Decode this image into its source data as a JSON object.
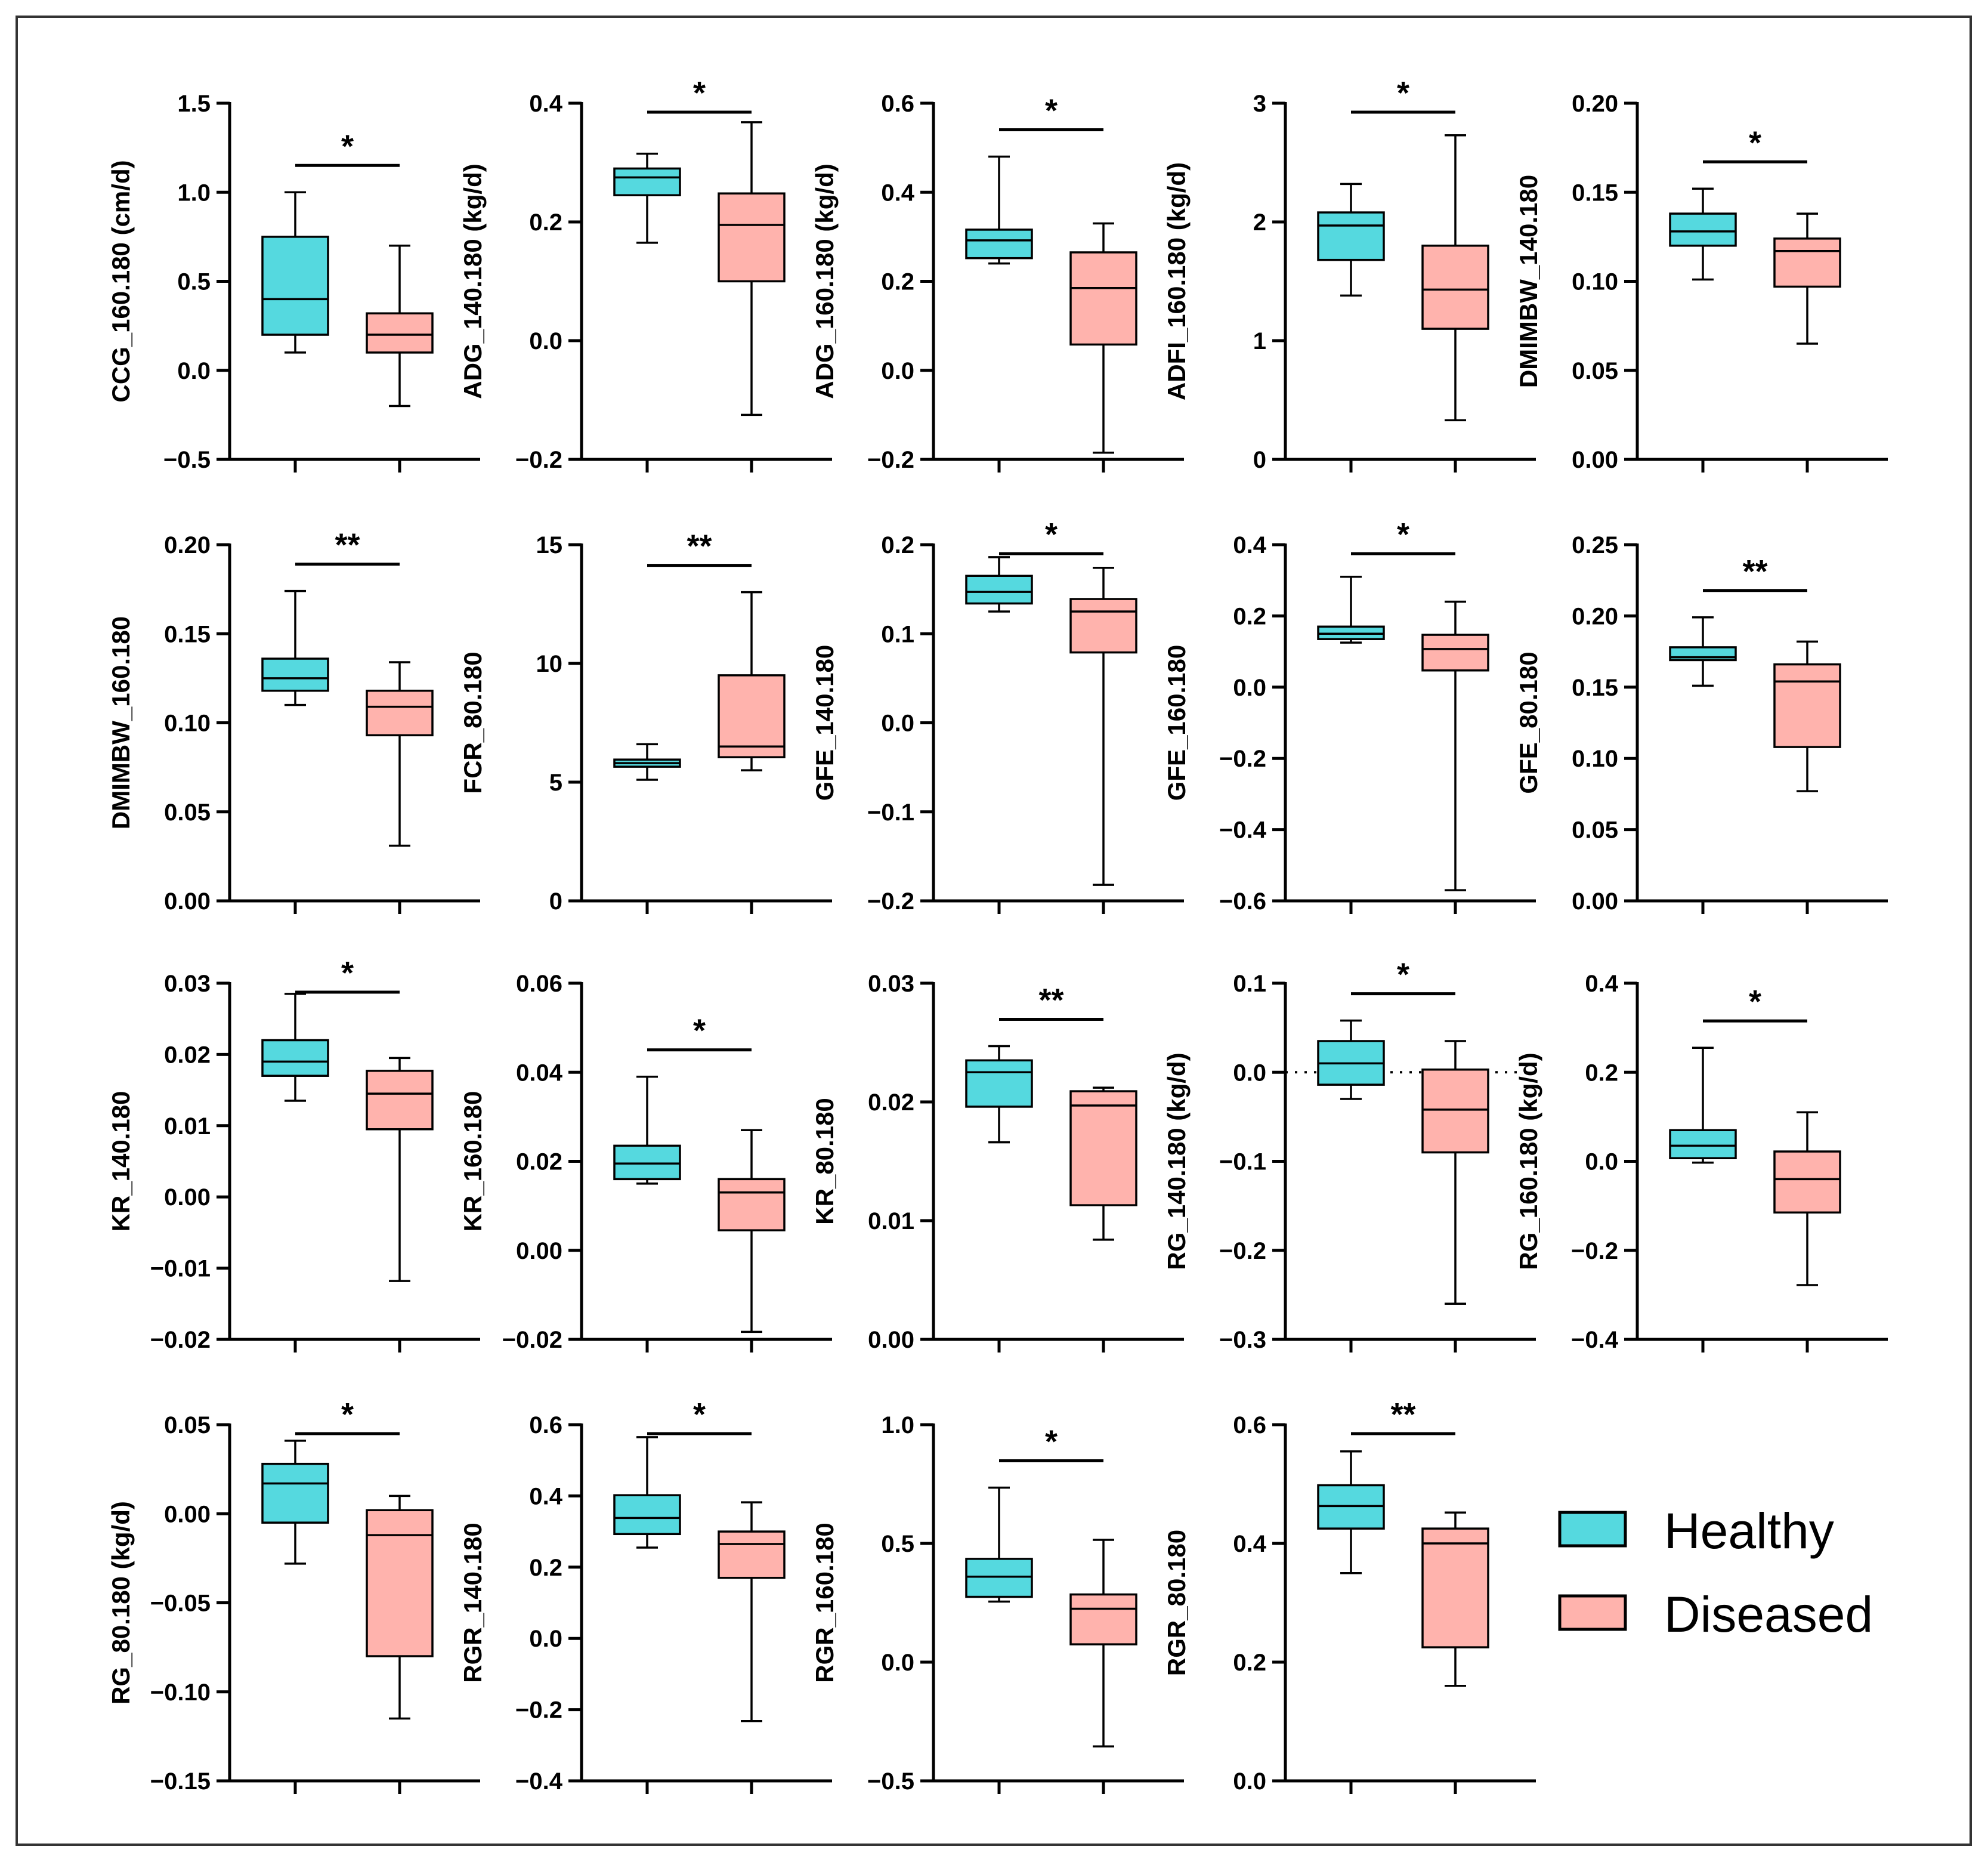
{
  "colors": {
    "healthy": "#55d9df",
    "diseased": "#ffb3ad",
    "stroke": "#000000"
  },
  "legend": {
    "position": "bottom-right",
    "items": [
      {
        "group": "healthy",
        "label": "Healthy"
      },
      {
        "group": "diseased",
        "label": "Diseased"
      }
    ]
  },
  "chart_data": [
    {
      "type": "boxplot",
      "ylabel": "CCG_160.180 (cm/d)",
      "ylim": [
        -0.5,
        1.5
      ],
      "ticks": [
        "1.5",
        "1.0",
        "0.5",
        "0.0",
        "−0.5"
      ],
      "sig": "*",
      "healthy": {
        "min": 0.1,
        "q1": 0.2,
        "median": 0.4,
        "q3": 0.75,
        "max": 1.0
      },
      "diseased": {
        "min": -0.2,
        "q1": 0.1,
        "median": 0.2,
        "q3": 0.32,
        "max": 0.7
      }
    },
    {
      "type": "boxplot",
      "ylabel": "ADG_140.180 (kg/d)",
      "ylim": [
        -0.2,
        0.4
      ],
      "ticks": [
        "0.4",
        "0.2",
        "0.0",
        "−0.2"
      ],
      "sig": "*",
      "healthy": {
        "min": 0.165,
        "q1": 0.245,
        "median": 0.275,
        "q3": 0.29,
        "max": 0.315
      },
      "diseased": {
        "min": -0.125,
        "q1": 0.1,
        "median": 0.195,
        "q3": 0.248,
        "max": 0.368
      }
    },
    {
      "type": "boxplot",
      "ylabel": "ADG_160.180 (kg/d)",
      "ylim": [
        -0.2,
        0.6
      ],
      "ticks": [
        "0.6",
        "0.4",
        "0.2",
        "0.0",
        "−0.2"
      ],
      "sig": "*",
      "healthy": {
        "min": 0.24,
        "q1": 0.252,
        "median": 0.292,
        "q3": 0.316,
        "max": 0.48
      },
      "diseased": {
        "min": -0.185,
        "q1": 0.058,
        "median": 0.185,
        "q3": 0.265,
        "max": 0.33
      }
    },
    {
      "type": "boxplot",
      "ylabel": "ADFI_160.180 (kg/d)",
      "ylim": [
        0,
        3
      ],
      "ticks": [
        "3",
        "2",
        "1",
        "0"
      ],
      "sig": "*",
      "healthy": {
        "min": 1.38,
        "q1": 1.68,
        "median": 1.97,
        "q3": 2.08,
        "max": 2.32
      },
      "diseased": {
        "min": 0.33,
        "q1": 1.1,
        "median": 1.43,
        "q3": 1.8,
        "max": 2.73
      }
    },
    {
      "type": "boxplot",
      "ylabel": "DMIMBW_140.180",
      "ylim": [
        0,
        0.2
      ],
      "ticks": [
        "0.20",
        "0.15",
        "0.10",
        "0.05",
        "0.00"
      ],
      "sig": "*",
      "healthy": {
        "min": 0.101,
        "q1": 0.12,
        "median": 0.128,
        "q3": 0.138,
        "max": 0.152
      },
      "diseased": {
        "min": 0.065,
        "q1": 0.097,
        "median": 0.117,
        "q3": 0.124,
        "max": 0.138
      }
    },
    {
      "type": "boxplot",
      "ylabel": "DMIMBW_160.180",
      "ylim": [
        0,
        0.2
      ],
      "ticks": [
        "0.20",
        "0.15",
        "0.10",
        "0.05",
        "0.00"
      ],
      "sig": "**",
      "healthy": {
        "min": 0.11,
        "q1": 0.118,
        "median": 0.125,
        "q3": 0.136,
        "max": 0.174
      },
      "diseased": {
        "min": 0.031,
        "q1": 0.093,
        "median": 0.109,
        "q3": 0.118,
        "max": 0.134
      }
    },
    {
      "type": "boxplot",
      "ylabel": "FCR_80.180",
      "ylim": [
        0,
        15
      ],
      "ticks": [
        "15",
        "10",
        "5",
        "0"
      ],
      "sig": "**",
      "healthy": {
        "min": 5.1,
        "q1": 5.65,
        "median": 5.8,
        "q3": 5.95,
        "max": 6.6
      },
      "diseased": {
        "min": 5.5,
        "q1": 6.05,
        "median": 6.5,
        "q3": 9.5,
        "max": 13.0
      }
    },
    {
      "type": "boxplot",
      "ylabel": "GFE_140.180",
      "ylim": [
        -0.2,
        0.2
      ],
      "ticks": [
        "0.2",
        "0.1",
        "0.0",
        "−0.1",
        "−0.2"
      ],
      "sig": "*",
      "healthy": {
        "min": 0.125,
        "q1": 0.134,
        "median": 0.147,
        "q3": 0.165,
        "max": 0.186
      },
      "diseased": {
        "min": -0.182,
        "q1": 0.079,
        "median": 0.125,
        "q3": 0.139,
        "max": 0.174
      }
    },
    {
      "type": "boxplot",
      "ylabel": "GFE_160.180",
      "ylim": [
        -0.6,
        0.4
      ],
      "ticks": [
        "0.4",
        "0.2",
        "0.0",
        "−0.2",
        "−0.4",
        "−0.6"
      ],
      "sig": "*",
      "healthy": {
        "min": 0.125,
        "q1": 0.135,
        "median": 0.15,
        "q3": 0.17,
        "max": 0.31
      },
      "diseased": {
        "min": -0.57,
        "q1": 0.047,
        "median": 0.107,
        "q3": 0.147,
        "max": 0.24
      }
    },
    {
      "type": "boxplot",
      "ylabel": "GFE_80.180",
      "ylim": [
        0,
        0.25
      ],
      "ticks": [
        "0.25",
        "0.20",
        "0.15",
        "0.10",
        "0.05",
        "0.00"
      ],
      "sig": "**",
      "healthy": {
        "min": 0.151,
        "q1": 0.169,
        "median": 0.171,
        "q3": 0.178,
        "max": 0.199
      },
      "diseased": {
        "min": 0.077,
        "q1": 0.108,
        "median": 0.154,
        "q3": 0.166,
        "max": 0.182
      }
    },
    {
      "type": "boxplot",
      "ylabel": "KR_140.180",
      "ylim": [
        -0.02,
        0.03
      ],
      "ticks": [
        "0.03",
        "0.02",
        "0.01",
        "0.00",
        "−0.01",
        "−0.02"
      ],
      "sig": "*",
      "healthy": {
        "min": 0.0135,
        "q1": 0.017,
        "median": 0.019,
        "q3": 0.022,
        "max": 0.0285
      },
      "diseased": {
        "min": -0.0118,
        "q1": 0.0095,
        "median": 0.0145,
        "q3": 0.0177,
        "max": 0.0195
      }
    },
    {
      "type": "boxplot",
      "ylabel": "KR_160.180",
      "ylim": [
        -0.02,
        0.06
      ],
      "ticks": [
        "0.06",
        "0.04",
        "0.02",
        "0.00",
        "−0.02"
      ],
      "sig": "*",
      "healthy": {
        "min": 0.015,
        "q1": 0.016,
        "median": 0.0195,
        "q3": 0.0235,
        "max": 0.039
      },
      "diseased": {
        "min": -0.0183,
        "q1": 0.0045,
        "median": 0.013,
        "q3": 0.016,
        "max": 0.027
      }
    },
    {
      "type": "boxplot",
      "ylabel": "KR_80.180",
      "ylim": [
        0,
        0.03
      ],
      "ticks": [
        "0.03",
        "0.02",
        "0.01",
        "0.00"
      ],
      "sig": "**",
      "healthy": {
        "min": 0.0166,
        "q1": 0.0196,
        "median": 0.0225,
        "q3": 0.0235,
        "max": 0.0247
      },
      "diseased": {
        "min": 0.0084,
        "q1": 0.0113,
        "median": 0.0197,
        "q3": 0.0209,
        "max": 0.0212
      }
    },
    {
      "type": "boxplot",
      "ylabel": "RG_140.180 (kg/d)",
      "ylim": [
        -0.3,
        0.1
      ],
      "ticks": [
        "0.1",
        "0.0",
        "−0.1",
        "−0.2",
        "−0.3"
      ],
      "sig": "*",
      "zero_line": true,
      "healthy": {
        "min": -0.03,
        "q1": -0.014,
        "median": 0.01,
        "q3": 0.035,
        "max": 0.058
      },
      "diseased": {
        "min": -0.26,
        "q1": -0.09,
        "median": -0.042,
        "q3": 0.003,
        "max": 0.035
      }
    },
    {
      "type": "boxplot",
      "ylabel": "RG_160.180 (kg/d)",
      "ylim": [
        -0.4,
        0.4
      ],
      "ticks": [
        "0.4",
        "0.2",
        "0.0",
        "−0.2",
        "−0.4"
      ],
      "sig": "*",
      "healthy": {
        "min": -0.003,
        "q1": 0.007,
        "median": 0.035,
        "q3": 0.07,
        "max": 0.255
      },
      "diseased": {
        "min": -0.278,
        "q1": -0.115,
        "median": -0.04,
        "q3": 0.022,
        "max": 0.11
      }
    },
    {
      "type": "boxplot",
      "ylabel": "RG_80.180 (kg/d)",
      "ylim": [
        -0.15,
        0.05
      ],
      "ticks": [
        "0.05",
        "0.00",
        "−0.05",
        "−0.10",
        "−0.15"
      ],
      "sig": "*",
      "healthy": {
        "min": -0.028,
        "q1": -0.005,
        "median": 0.017,
        "q3": 0.028,
        "max": 0.041
      },
      "diseased": {
        "min": -0.115,
        "q1": -0.08,
        "median": -0.012,
        "q3": 0.002,
        "max": 0.01
      }
    },
    {
      "type": "boxplot",
      "ylabel": "RGR_140.180",
      "ylim": [
        -0.4,
        0.6
      ],
      "ticks": [
        "0.6",
        "0.4",
        "0.2",
        "0.0",
        "−0.2",
        "−0.4"
      ],
      "sig": "*",
      "healthy": {
        "min": 0.255,
        "q1": 0.293,
        "median": 0.338,
        "q3": 0.402,
        "max": 0.565
      },
      "diseased": {
        "min": -0.232,
        "q1": 0.17,
        "median": 0.265,
        "q3": 0.3,
        "max": 0.382
      }
    },
    {
      "type": "boxplot",
      "ylabel": "RGR_160.180",
      "ylim": [
        -0.5,
        1.0
      ],
      "ticks": [
        "1.0",
        "0.5",
        "0.0",
        "−0.5"
      ],
      "sig": "*",
      "healthy": {
        "min": 0.255,
        "q1": 0.275,
        "median": 0.36,
        "q3": 0.435,
        "max": 0.735
      },
      "diseased": {
        "min": -0.355,
        "q1": 0.075,
        "median": 0.225,
        "q3": 0.285,
        "max": 0.515
      }
    },
    {
      "type": "boxplot",
      "ylabel": "RGR_80.180",
      "ylim": [
        0,
        0.6
      ],
      "ticks": [
        "0.6",
        "0.4",
        "0.2",
        "0.0"
      ],
      "sig": "**",
      "healthy": {
        "min": 0.35,
        "q1": 0.425,
        "median": 0.463,
        "q3": 0.498,
        "max": 0.555
      },
      "diseased": {
        "min": 0.16,
        "q1": 0.225,
        "median": 0.4,
        "q3": 0.425,
        "max": 0.452
      }
    }
  ]
}
